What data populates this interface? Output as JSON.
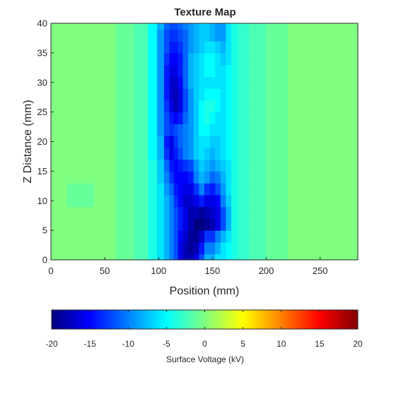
{
  "chart_data": {
    "type": "heatmap",
    "title": "Texture Map",
    "xlabel": "Position (mm)",
    "ylabel": "Z Distance (mm)",
    "xlim": [
      0,
      285
    ],
    "ylim": [
      0,
      40
    ],
    "x_ticks": [
      "0",
      "50",
      "100",
      "150",
      "200",
      "250"
    ],
    "y_ticks": [
      "0",
      "5",
      "10",
      "15",
      "20",
      "25",
      "30",
      "35",
      "40"
    ],
    "grid": false,
    "colormap": "jet",
    "colorbar": {
      "label": "Surface Voltage (kV)",
      "range": [
        -20,
        20
      ],
      "ticks": [
        "-20",
        "-15",
        "-10",
        "-5",
        "0",
        "5",
        "10",
        "15",
        "20"
      ],
      "placement": "bottom"
    },
    "z_units": "kV",
    "x": [
      0,
      30,
      50,
      70,
      85,
      95,
      102,
      108,
      112,
      116,
      120,
      125,
      130,
      135,
      140,
      145,
      150,
      155,
      160,
      165,
      170,
      178,
      190,
      210,
      230,
      250,
      285
    ],
    "y": [
      0,
      2,
      4,
      6,
      8,
      10,
      12,
      14,
      16,
      18,
      20,
      22,
      24,
      26,
      28,
      30,
      32,
      34,
      36,
      38,
      40
    ],
    "z": [
      [
        0,
        0,
        0,
        -1,
        -2,
        -4,
        -6,
        -8,
        -10,
        -12,
        -16,
        -18,
        -18,
        -16,
        -12,
        -8,
        -8,
        -6,
        -6,
        -5,
        -4,
        -3,
        -2,
        -1,
        0,
        0,
        0
      ],
      [
        0,
        0,
        0,
        -1,
        -2,
        -4,
        -6,
        -8,
        -10,
        -12,
        -16,
        -18,
        -19,
        -18,
        -14,
        -10,
        -10,
        -8,
        -6,
        -5,
        -4,
        -3,
        -2,
        -1,
        0,
        0,
        0
      ],
      [
        0,
        0,
        0,
        -1,
        -2,
        -4,
        -6,
        -8,
        -10,
        -12,
        -15,
        -17,
        -19,
        -19,
        -17,
        -13,
        -13,
        -10,
        -8,
        -6,
        -4,
        -3,
        -2,
        -1,
        0,
        0,
        0
      ],
      [
        0,
        0,
        0,
        -1,
        -2,
        -4,
        -6,
        -8,
        -10,
        -12,
        -14,
        -16,
        -18,
        -20,
        -20,
        -19,
        -18,
        -16,
        -12,
        -8,
        -4,
        -3,
        -2,
        -1,
        0,
        0,
        0
      ],
      [
        0,
        0,
        0,
        -1,
        -2,
        -4,
        -6,
        -8,
        -10,
        -12,
        -14,
        -16,
        -18,
        -18,
        -19,
        -18,
        -17,
        -16,
        -12,
        -8,
        -4,
        -3,
        -2,
        -1,
        0,
        0,
        0
      ],
      [
        0,
        -1,
        0,
        -1,
        -2,
        -4,
        -6,
        -8,
        -10,
        -13,
        -15,
        -17,
        -17,
        -16,
        -14,
        -16,
        -16,
        -15,
        -10,
        -7,
        -4,
        -3,
        -2,
        -1,
        0,
        0,
        0
      ],
      [
        0,
        -1,
        0,
        -1,
        -2,
        -4,
        -6,
        -9,
        -11,
        -14,
        -15,
        -16,
        -16,
        -13,
        -10,
        -13,
        -14,
        -12,
        -9,
        -6,
        -4,
        -3,
        -2,
        -1,
        0,
        0,
        0
      ],
      [
        0,
        0,
        0,
        -1,
        -2,
        -4,
        -7,
        -10,
        -13,
        -15,
        -15,
        -15,
        -14,
        -10,
        -8,
        -9,
        -11,
        -10,
        -8,
        -6,
        -4,
        -3,
        -2,
        -1,
        0,
        0,
        0
      ],
      [
        0,
        0,
        0,
        -1,
        -2,
        -4,
        -7,
        -11,
        -14,
        -15,
        -14,
        -13,
        -12,
        -9,
        -7,
        -8,
        -9,
        -8,
        -7,
        -6,
        -4,
        -3,
        -2,
        -1,
        0,
        0,
        0
      ],
      [
        0,
        0,
        0,
        -1,
        -2,
        -5,
        -8,
        -13,
        -16,
        -14,
        -12,
        -10,
        -9,
        -7,
        -6,
        -7,
        -8,
        -7,
        -6,
        -5,
        -4,
        -3,
        -2,
        -1,
        0,
        0,
        0
      ],
      [
        0,
        0,
        0,
        -1,
        -2,
        -5,
        -8,
        -14,
        -16,
        -13,
        -11,
        -10,
        -9,
        -7,
        -6,
        -6,
        -7,
        -7,
        -6,
        -5,
        -4,
        -3,
        -2,
        -1,
        0,
        0,
        0
      ],
      [
        0,
        0,
        0,
        -1,
        -2,
        -5,
        -9,
        -12,
        -13,
        -12,
        -11,
        -10,
        -9,
        -7,
        -5,
        -5,
        -6,
        -6,
        -6,
        -5,
        -4,
        -3,
        -2,
        -1,
        0,
        0,
        0
      ],
      [
        0,
        0,
        0,
        -1,
        -2,
        -5,
        -9,
        -12,
        -14,
        -15,
        -14,
        -11,
        -9,
        -7,
        -5,
        -4,
        -5,
        -6,
        -6,
        -5,
        -4,
        -3,
        -2,
        -1,
        0,
        0,
        0
      ],
      [
        0,
        0,
        0,
        -1,
        -2,
        -5,
        -9,
        -13,
        -16,
        -18,
        -16,
        -12,
        -9,
        -7,
        -5,
        -4,
        -4,
        -5,
        -6,
        -5,
        -4,
        -3,
        -2,
        -1,
        0,
        0,
        0
      ],
      [
        0,
        0,
        0,
        -1,
        -2,
        -5,
        -9,
        -14,
        -17,
        -18,
        -16,
        -12,
        -9,
        -7,
        -6,
        -5,
        -5,
        -5,
        -6,
        -5,
        -4,
        -3,
        -2,
        -1,
        0,
        0,
        0
      ],
      [
        0,
        0,
        0,
        -1,
        -2,
        -5,
        -9,
        -14,
        -17,
        -17,
        -15,
        -11,
        -8,
        -7,
        -6,
        -6,
        -6,
        -6,
        -6,
        -5,
        -4,
        -3,
        -2,
        -1,
        0,
        0,
        0
      ],
      [
        0,
        0,
        0,
        -1,
        -2,
        -5,
        -9,
        -14,
        -16,
        -16,
        -14,
        -11,
        -8,
        -7,
        -6,
        -5,
        -5,
        -6,
        -6,
        -5,
        -4,
        -3,
        -2,
        -1,
        0,
        0,
        0
      ],
      [
        0,
        0,
        0,
        -1,
        -2,
        -5,
        -9,
        -13,
        -15,
        -15,
        -14,
        -11,
        -8,
        -7,
        -6,
        -5,
        -5,
        -6,
        -7,
        -6,
        -4,
        -3,
        -2,
        -1,
        0,
        0,
        0
      ],
      [
        0,
        0,
        0,
        -1,
        -2,
        -5,
        -9,
        -12,
        -14,
        -14,
        -13,
        -11,
        -9,
        -8,
        -7,
        -6,
        -6,
        -7,
        -8,
        -6,
        -4,
        -3,
        -2,
        -1,
        0,
        0,
        0
      ],
      [
        0,
        0,
        0,
        -1,
        -2,
        -5,
        -9,
        -12,
        -13,
        -13,
        -12,
        -11,
        -9,
        -8,
        -7,
        -7,
        -8,
        -9,
        -9,
        -6,
        -4,
        -3,
        -2,
        -1,
        0,
        0,
        0
      ],
      [
        0,
        0,
        0,
        -1,
        -2,
        -5,
        -8,
        -11,
        -12,
        -12,
        -11,
        -10,
        -9,
        -8,
        -7,
        -7,
        -8,
        -9,
        -9,
        -6,
        -4,
        -3,
        -2,
        -1,
        0,
        0,
        0
      ]
    ]
  }
}
